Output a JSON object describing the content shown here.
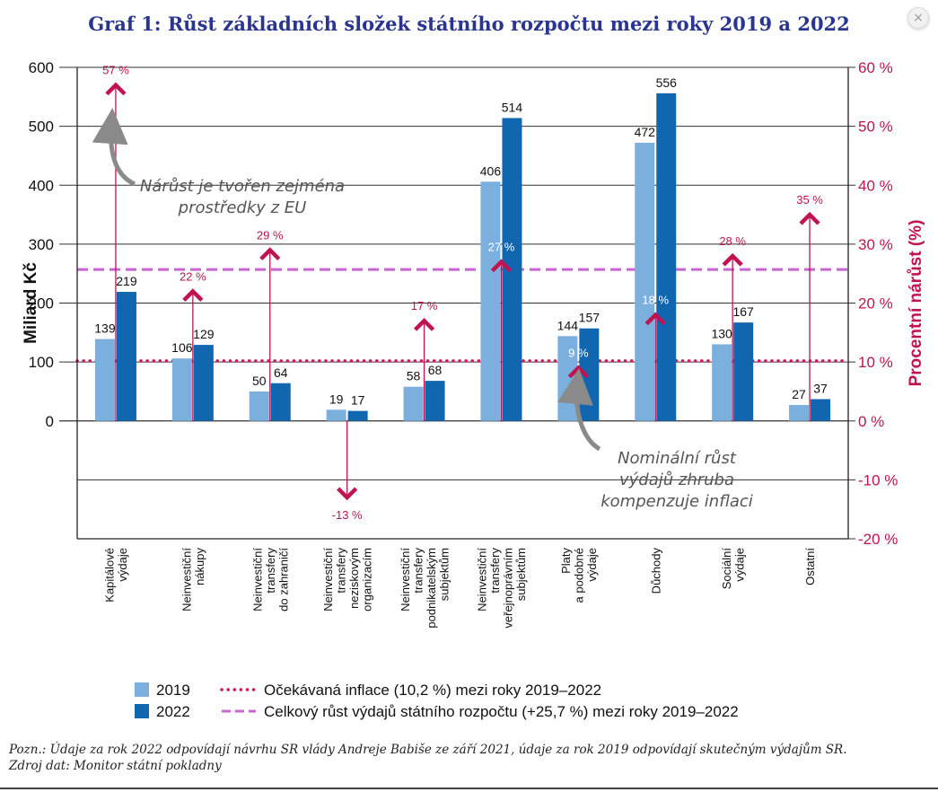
{
  "title": "Graf 1: Růst základních složek státního rozpočtu mezi roky 2019 a 2022",
  "close_label": "×",
  "chart_data": {
    "type": "bar",
    "title": "Graf 1: Růst základních složek státního rozpočtu mezi roky 2019 a 2022",
    "ylabel": "Miliard Kč",
    "ylabel_right": "Procentní nárůst (%)",
    "ylim": [
      -200,
      600
    ],
    "y_ticks": [
      0,
      100,
      200,
      300,
      400,
      500,
      600
    ],
    "y2lim": [
      -20,
      60
    ],
    "y2_ticks": [
      "-20 %",
      "-10 %",
      "0 %",
      "10 %",
      "20 %",
      "30 %",
      "40 %",
      "50 %",
      "60 %"
    ],
    "categories": [
      [
        "Kapitálové",
        "výdaje"
      ],
      [
        "Neinvestiční",
        "nákupy"
      ],
      [
        "Neinvestiční",
        "transfery",
        "do zahraničí"
      ],
      [
        "Neinvestiční",
        "transfery",
        "neziskovým",
        "organizacím"
      ],
      [
        "Neinvestiční",
        "transfery",
        "podnikatelským",
        "subjektům"
      ],
      [
        "Neinvestiční",
        "transfery",
        "veřejnoprávním",
        "subjektům"
      ],
      [
        "Platy",
        "a podobné",
        "výdaje"
      ],
      [
        "Důchody"
      ],
      [
        "Sociální",
        "výdaje"
      ],
      [
        "Ostatní"
      ]
    ],
    "series": [
      {
        "name": "2019",
        "color": "#7bafde",
        "values": [
          139,
          106,
          50,
          19,
          58,
          406,
          144,
          472,
          130,
          27
        ]
      },
      {
        "name": "2022",
        "color": "#1166b0",
        "values": [
          219,
          129,
          64,
          17,
          68,
          514,
          157,
          556,
          167,
          37
        ]
      }
    ],
    "growth_pct": [
      57,
      22,
      29,
      -13,
      17,
      27,
      9,
      18,
      28,
      35
    ],
    "growth_labels": [
      "57 %",
      "22 %",
      "29 %",
      "-13 %",
      "17 %",
      "27 %",
      "9 %",
      "18 %",
      "28 %",
      "35 %"
    ],
    "growth_color": "#c0134f",
    "reference_lines": [
      {
        "value_pct": 10.2,
        "style": "dotted",
        "color": "#d4145a",
        "label": "Očekávaná inflace (10,2 %) mezi roky 2019–2022"
      },
      {
        "value_pct": 25.7,
        "style": "dashed",
        "color": "#c965d0",
        "label": "Celkový růst výdajů státního rozpočtu (+25,7 %) mezi roky 2019–2022"
      }
    ],
    "annotations": [
      {
        "text": [
          "Nárůst je tvořen zejména",
          "prostředky z EU"
        ]
      },
      {
        "text": [
          "Nominální růst",
          "výdajů zhruba",
          "kompenzuje inflaci"
        ]
      }
    ],
    "legend": {
      "position": "bottom-left",
      "series_labels": [
        "2019",
        "2022"
      ]
    }
  },
  "note_line1": "Pozn.:  Údaje za rok 2022 odpovídají návrhu SR vlády Andreje Babiše ze září 2021, údaje za rok 2019 odpovídají skutečným výdajům SR.",
  "note_line2": "Zdroj dat: Monitor státní pokladny"
}
